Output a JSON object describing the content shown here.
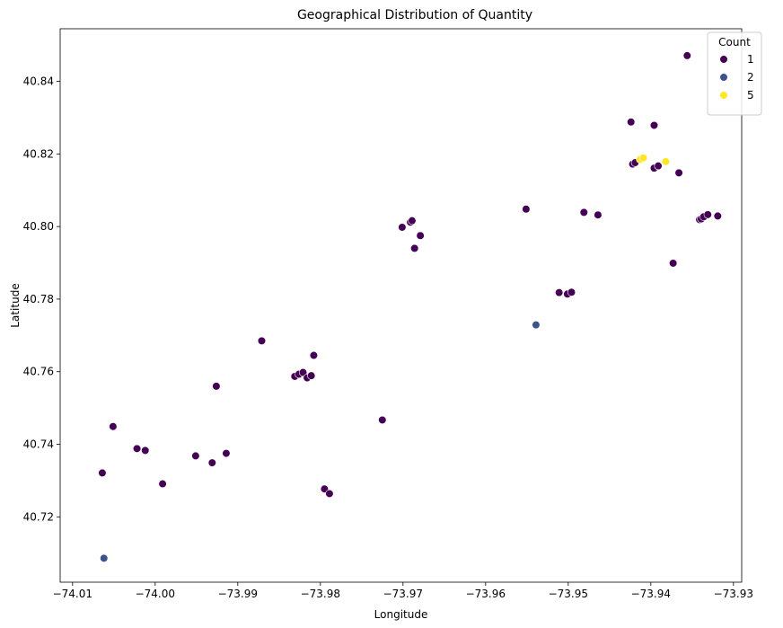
{
  "chart_data": {
    "type": "scatter",
    "title": "Geographical Distribution of Quantity",
    "xlabel": "Longitude",
    "ylabel": "Latitude",
    "xlim": [
      -74.0115,
      -73.929
    ],
    "ylim": [
      40.702,
      40.8545
    ],
    "xticks": [
      -74.01,
      -74.0,
      -73.99,
      -73.98,
      -73.97,
      -73.96,
      -73.95,
      -73.94,
      -73.93
    ],
    "xtick_labels": [
      "−74.01",
      "−74.00",
      "−73.99",
      "−73.98",
      "−73.97",
      "−73.96",
      "−73.95",
      "−73.94",
      "−73.93"
    ],
    "yticks": [
      40.72,
      40.74,
      40.76,
      40.78,
      40.8,
      40.82,
      40.84
    ],
    "ytick_labels": [
      "40.72",
      "40.74",
      "40.76",
      "40.78",
      "40.80",
      "40.82",
      "40.84"
    ],
    "grid": false,
    "legend": {
      "title": "Count",
      "position": "top-right",
      "entries": [
        {
          "label": "1",
          "color": "#440154"
        },
        {
          "label": "2",
          "color": "#3b528b"
        },
        {
          "label": "5",
          "color": "#fde725"
        }
      ]
    },
    "series": [
      {
        "name": "1",
        "color": "#440154",
        "points": [
          [
            -74.0064,
            40.7321
          ],
          [
            -74.0051,
            40.7449
          ],
          [
            -74.0022,
            40.7388
          ],
          [
            -74.0012,
            40.7383
          ],
          [
            -73.9991,
            40.7291
          ],
          [
            -73.9951,
            40.7368
          ],
          [
            -73.9931,
            40.7349
          ],
          [
            -73.9926,
            40.756
          ],
          [
            -73.9914,
            40.7375
          ],
          [
            -73.9871,
            40.7685
          ],
          [
            -73.9831,
            40.7587
          ],
          [
            -73.9826,
            40.7593
          ],
          [
            -73.9821,
            40.7598
          ],
          [
            -73.9816,
            40.7583
          ],
          [
            -73.9811,
            40.7589
          ],
          [
            -73.9808,
            40.7645
          ],
          [
            -73.9795,
            40.7277
          ],
          [
            -73.9789,
            40.7264
          ],
          [
            -73.9725,
            40.7467
          ],
          [
            -73.9701,
            40.7998
          ],
          [
            -73.9691,
            40.8012
          ],
          [
            -73.9689,
            40.8016
          ],
          [
            -73.9686,
            40.794
          ],
          [
            -73.9679,
            40.7975
          ],
          [
            -73.9551,
            40.8048
          ],
          [
            -73.9511,
            40.7818
          ],
          [
            -73.9501,
            40.7814
          ],
          [
            -73.9496,
            40.7819
          ],
          [
            -73.9481,
            40.8039
          ],
          [
            -73.9464,
            40.8032
          ],
          [
            -73.9424,
            40.8288
          ],
          [
            -73.9422,
            40.8172
          ],
          [
            -73.9419,
            40.8176
          ],
          [
            -73.9396,
            40.8279
          ],
          [
            -73.9396,
            40.8161
          ],
          [
            -73.9391,
            40.8167
          ],
          [
            -73.9373,
            40.7899
          ],
          [
            -73.9366,
            40.8148
          ],
          [
            -73.9356,
            40.8471
          ],
          [
            -73.9341,
            40.8019
          ],
          [
            -73.9339,
            40.8021
          ],
          [
            -73.9336,
            40.8027
          ],
          [
            -73.9331,
            40.8033
          ],
          [
            -73.9319,
            40.8029
          ]
        ]
      },
      {
        "name": "2",
        "color": "#3b528b",
        "points": [
          [
            -74.0062,
            40.7086
          ],
          [
            -73.9539,
            40.7729
          ]
        ]
      },
      {
        "name": "5",
        "color": "#fde725",
        "points": [
          [
            -73.9413,
            40.8185
          ],
          [
            -73.9409,
            40.8189
          ],
          [
            -73.9382,
            40.8179
          ]
        ]
      }
    ]
  }
}
